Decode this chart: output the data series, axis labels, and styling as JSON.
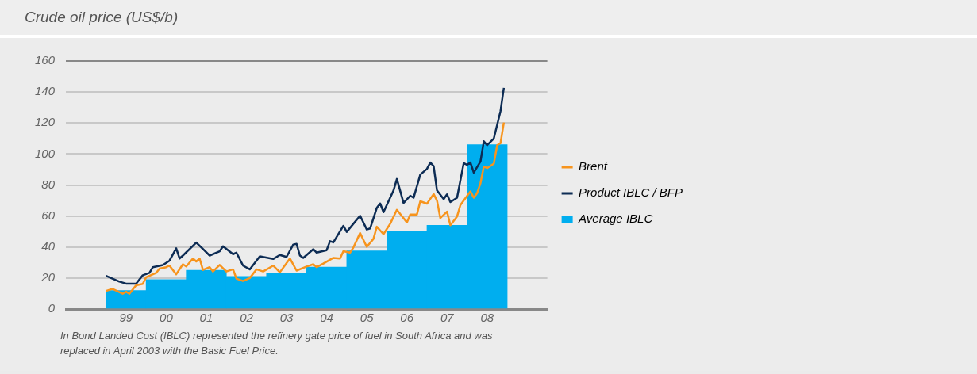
{
  "chart_data": {
    "type": "line",
    "title": "Crude oil price (US$/b)",
    "annotations": [
      "In Bond Landed Cost (IBLC) represented the refinery gate price of fuel in South Africa and was replaced in April 2003 with the Basic Fuel Price."
    ],
    "xlim": [
      "1998",
      "2010"
    ],
    "xticks": [
      {
        "value": "1999-07",
        "label": "99"
      },
      {
        "value": "2000-07",
        "label": "00"
      },
      {
        "value": "2001-07",
        "label": "01"
      },
      {
        "value": "2002-07",
        "label": "02"
      },
      {
        "value": "2003-07",
        "label": "03"
      },
      {
        "value": "2004-07",
        "label": "04"
      },
      {
        "value": "2005-07",
        "label": "05"
      },
      {
        "value": "2006-07",
        "label": "06"
      },
      {
        "value": "2007-07",
        "label": "07"
      },
      {
        "value": "2008-07",
        "label": "08"
      }
    ],
    "ylim": [
      0,
      160
    ],
    "yticks": [
      0,
      20,
      40,
      60,
      80,
      100,
      120,
      140,
      160
    ],
    "grid": "y",
    "legend": "right",
    "series": [
      {
        "name": "Brent",
        "color": "#f7941d",
        "x": [
          "1999-01",
          "1999-03",
          "1999-06",
          "1999-07",
          "1999-08",
          "1999-10",
          "1999-12",
          "2000-01",
          "2000-04",
          "2000-05",
          "2000-07",
          "2000-08",
          "2000-10",
          "2000-12",
          "2001-01",
          "2001-03",
          "2001-04",
          "2001-05",
          "2001-06",
          "2001-08",
          "2001-09",
          "2001-11",
          "2002-01",
          "2002-03",
          "2002-04",
          "2002-06",
          "2002-08",
          "2002-10",
          "2002-12",
          "2003-03",
          "2003-05",
          "2003-08",
          "2003-10",
          "2004-01",
          "2004-03",
          "2004-04",
          "2004-06",
          "2004-09",
          "2004-11",
          "2004-12",
          "2005-02",
          "2005-03",
          "2005-05",
          "2005-07",
          "2005-09",
          "2005-10",
          "2005-12",
          "2006-02",
          "2006-04",
          "2006-07",
          "2006-08",
          "2006-10",
          "2006-11",
          "2007-01",
          "2007-03",
          "2007-04",
          "2007-05",
          "2007-07",
          "2007-08",
          "2007-10",
          "2007-11",
          "2008-02",
          "2008-03",
          "2008-04",
          "2008-05",
          "2008-06",
          "2008-07",
          "2008-09",
          "2008-10",
          "2008-11",
          "2008-12"
        ],
        "values": [
          11.7,
          13,
          9.9,
          11.2,
          9.9,
          15.3,
          16.2,
          20.5,
          23.3,
          26.1,
          27,
          28,
          22.4,
          28.9,
          27.5,
          32.6,
          30.7,
          32.6,
          25.2,
          27,
          24.2,
          28.4,
          24.2,
          25.6,
          19.6,
          18.1,
          20,
          25.6,
          24.2,
          28,
          23.7,
          32.6,
          24.8,
          27.4,
          28.9,
          27,
          29.3,
          33,
          32.6,
          37.3,
          36.4,
          39.7,
          49,
          40.1,
          45.3,
          53.1,
          48.3,
          55,
          64,
          55.9,
          61,
          61,
          69.5,
          68,
          74.2,
          70,
          58.7,
          62.8,
          54.1,
          59.7,
          67.1,
          75.9,
          71.8,
          74.8,
          81.1,
          91.9,
          90.9,
          93.8,
          105.7,
          107,
          120.3
        ]
      },
      {
        "name": "Product IBLC / BFP",
        "color": "#0d2c54",
        "x": [
          "1999-01",
          "1999-05",
          "1999-07",
          "1999-10",
          "1999-12",
          "2000-02",
          "2000-03",
          "2000-06",
          "2000-08",
          "2000-10",
          "2000-11",
          "2000-12",
          "2001-04",
          "2001-08",
          "2001-11",
          "2001-12",
          "2002-03",
          "2002-04",
          "2002-06",
          "2002-08",
          "2002-11",
          "2003-03",
          "2003-05",
          "2003-07",
          "2003-09",
          "2003-10",
          "2003-11",
          "2003-12",
          "2004-03",
          "2004-04",
          "2004-07",
          "2004-08",
          "2004-09",
          "2004-12",
          "2005-01",
          "2005-03",
          "2005-05",
          "2005-07",
          "2005-08",
          "2005-10",
          "2005-11",
          "2005-12",
          "2006-03",
          "2006-04",
          "2006-06",
          "2006-08",
          "2006-09",
          "2006-11",
          "2007-01",
          "2007-02",
          "2007-03",
          "2007-04",
          "2007-06",
          "2007-07",
          "2007-08",
          "2007-10",
          "2007-12",
          "2008-01",
          "2008-02",
          "2008-03",
          "2008-05",
          "2008-06",
          "2008-07",
          "2008-09",
          "2008-11",
          "2008-12"
        ],
        "values": [
          21.4,
          17.7,
          16.4,
          16.4,
          21.8,
          23.3,
          27,
          28.4,
          31.2,
          39.2,
          32.6,
          34.5,
          42.9,
          34.5,
          37.3,
          40.5,
          35.4,
          36.4,
          28,
          25.6,
          34,
          32.3,
          34.9,
          33.6,
          41.6,
          42,
          34.5,
          33,
          38.6,
          36.4,
          38,
          43.8,
          43,
          53.7,
          49.8,
          55,
          60.2,
          51.3,
          52,
          65.3,
          68.1,
          62.5,
          76.5,
          83.9,
          68.4,
          73.1,
          71.8,
          86.7,
          90.4,
          94.5,
          92.2,
          76.5,
          70.9,
          74,
          69,
          71.8,
          94.2,
          93,
          94.5,
          88,
          95.1,
          108.2,
          105.7,
          110,
          127.7,
          142.7
        ]
      },
      {
        "name": "Average IBLC",
        "type": "bar",
        "color": "#00aeef",
        "x": [
          "1999-07",
          "2000-07",
          "2001-07",
          "2002-07",
          "2003-07",
          "2004-07",
          "2005-07",
          "2006-07",
          "2007-07",
          "2008-07"
        ],
        "values": [
          12,
          19,
          25,
          21,
          23,
          27,
          37.5,
          50,
          54,
          106
        ]
      }
    ]
  }
}
